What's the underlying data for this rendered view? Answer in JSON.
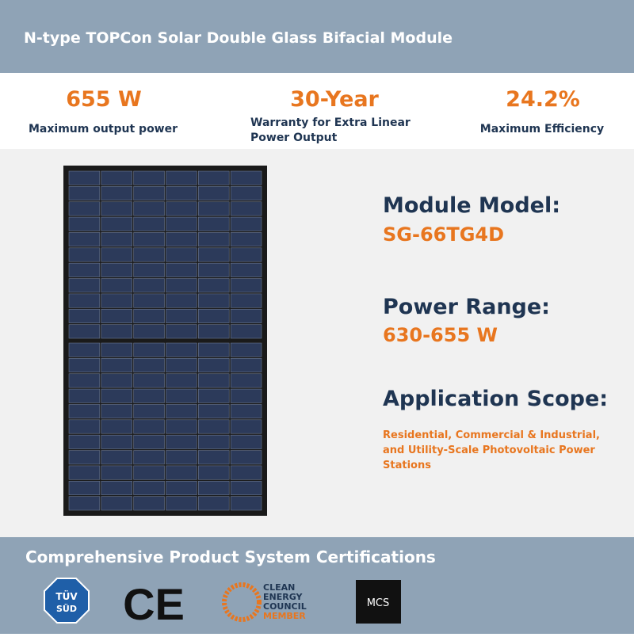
{
  "header": {
    "title": "N-type TOPCon Solar Double Glass Bifacial Module"
  },
  "highlights": [
    {
      "value": "655 W",
      "label": [
        "Maximum output power"
      ]
    },
    {
      "value": "30-Year",
      "label": [
        "Warranty for Extra Linear",
        "Power Output"
      ]
    },
    {
      "value": "24.2%",
      "label": [
        "Maximum Efficiency"
      ]
    }
  ],
  "specs": [
    {
      "label": "Module Model:",
      "value": "SG-66TG4D"
    },
    {
      "label": "Power Range:",
      "value": "630-655 W"
    }
  ],
  "application": {
    "label": "Application Scope:",
    "lines": [
      "Residential, Commercial & Industrial,",
      "and Utility-Scale Photovoltaic Power",
      "Stations"
    ]
  },
  "certifications": {
    "title": "Comprehensive Product System Certifications",
    "tuv": [
      "TÜV",
      "SÜD"
    ],
    "ce": "CE",
    "cec": [
      "CLEAN",
      "ENERGY",
      "COUNCIL",
      "MEMBER"
    ],
    "mcs": "MCS"
  }
}
